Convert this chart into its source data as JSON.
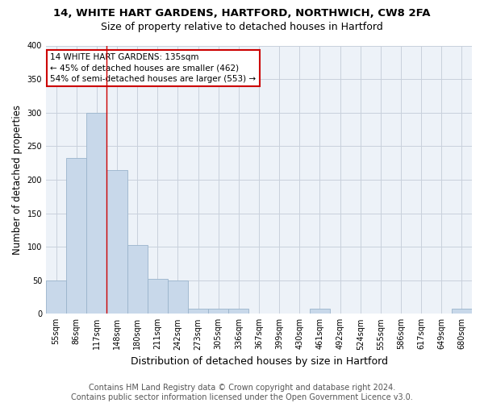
{
  "title1": "14, WHITE HART GARDENS, HARTFORD, NORTHWICH, CW8 2FA",
  "title2": "Size of property relative to detached houses in Hartford",
  "xlabel": "Distribution of detached houses by size in Hartford",
  "ylabel": "Number of detached properties",
  "footer": "Contains HM Land Registry data © Crown copyright and database right 2024.\nContains public sector information licensed under the Open Government Licence v3.0.",
  "bin_labels": [
    "55sqm",
    "86sqm",
    "117sqm",
    "148sqm",
    "180sqm",
    "211sqm",
    "242sqm",
    "273sqm",
    "305sqm",
    "336sqm",
    "367sqm",
    "399sqm",
    "430sqm",
    "461sqm",
    "492sqm",
    "524sqm",
    "555sqm",
    "586sqm",
    "617sqm",
    "649sqm",
    "680sqm"
  ],
  "bar_heights": [
    50,
    232,
    300,
    214,
    103,
    52,
    50,
    8,
    8,
    8,
    0,
    0,
    0,
    8,
    0,
    0,
    0,
    0,
    0,
    0,
    8
  ],
  "bar_color": "#c8d8ea",
  "bar_edge_color": "#9ab4cc",
  "grid_color": "#c8d0dc",
  "plot_bg_color": "#edf2f8",
  "fig_bg_color": "#ffffff",
  "red_line_x": 2.5,
  "annotation_text": "14 WHITE HART GARDENS: 135sqm\n← 45% of detached houses are smaller (462)\n54% of semi-detached houses are larger (553) →",
  "ylim": [
    0,
    400
  ],
  "yticks": [
    0,
    50,
    100,
    150,
    200,
    250,
    300,
    350,
    400
  ],
  "title1_fontsize": 9.5,
  "title2_fontsize": 9,
  "ylabel_fontsize": 8.5,
  "xlabel_fontsize": 9,
  "tick_fontsize": 7,
  "ann_fontsize": 7.5,
  "footer_fontsize": 7
}
